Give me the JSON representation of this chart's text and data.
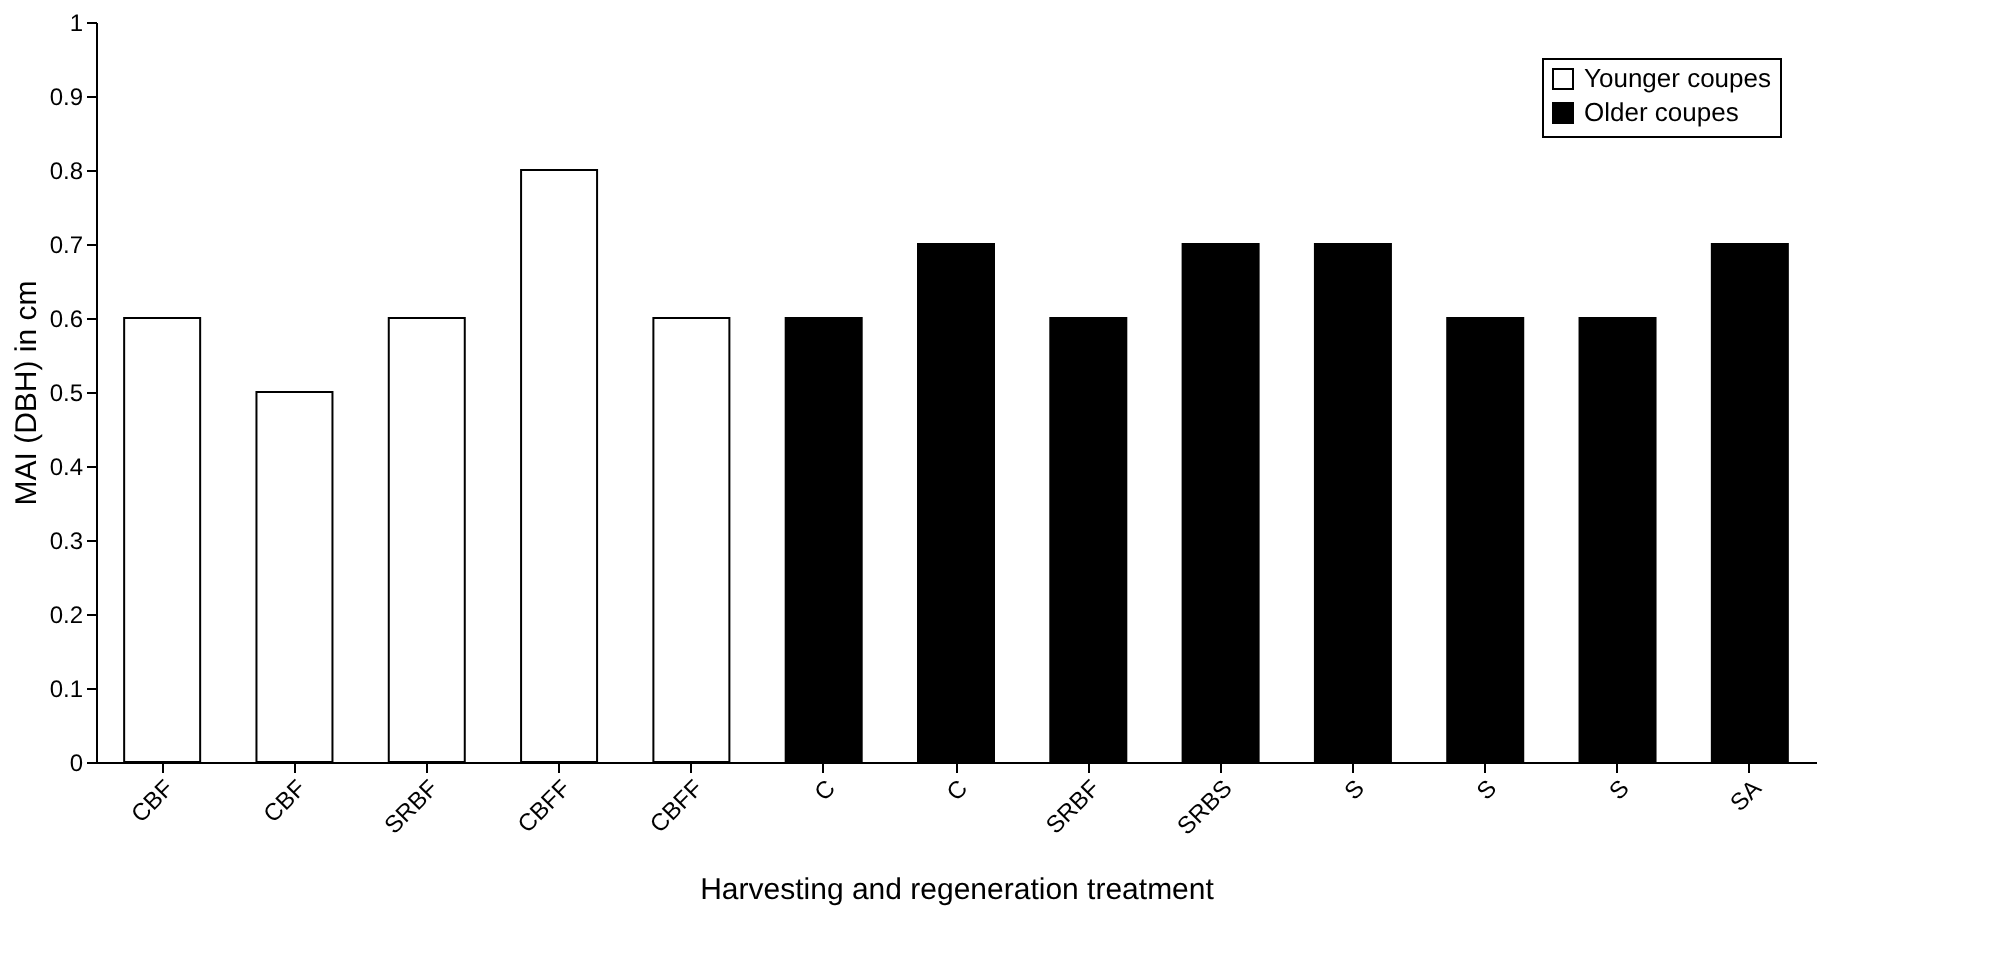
{
  "chart_data": {
    "type": "bar",
    "xlabel": "Harvesting and regeneration treatment",
    "ylabel": "MAI (DBH) in cm",
    "categories": [
      "CBF",
      "CBF",
      "SRBF",
      "CBFF",
      "CBFF",
      "C",
      "C",
      "SRBF",
      "SRBS",
      "S",
      "S",
      "S",
      "SA"
    ],
    "series": [
      {
        "name": "Younger coupes",
        "color": "#ffffff",
        "values": [
          0.6,
          0.5,
          0.6,
          0.8,
          0.6,
          null,
          null,
          null,
          null,
          null,
          null,
          null,
          null
        ]
      },
      {
        "name": "Older coupes",
        "color": "#000000",
        "values": [
          null,
          null,
          null,
          null,
          null,
          0.6,
          0.7,
          0.6,
          0.7,
          0.7,
          0.6,
          0.6,
          0.7
        ]
      }
    ],
    "ylim": [
      0,
      1
    ],
    "yticks": [
      0,
      0.1,
      0.2,
      0.3,
      0.4,
      0.5,
      0.6,
      0.7,
      0.8,
      0.9,
      1
    ],
    "grid": false,
    "legend": "top right"
  }
}
